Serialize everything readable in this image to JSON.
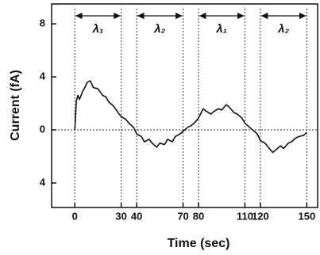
{
  "chart_data": {
    "type": "line",
    "x_label": "Time (sec)",
    "y_label": "Current (fA)",
    "x": [
      0,
      1,
      2,
      3,
      5,
      7,
      8,
      10,
      12,
      15,
      18,
      20,
      22,
      25,
      28,
      30,
      33,
      35,
      38,
      40,
      43,
      45,
      48,
      50,
      53,
      55,
      58,
      60,
      63,
      65,
      68,
      70,
      73,
      75,
      78,
      80,
      83,
      85,
      88,
      90,
      93,
      95,
      98,
      100,
      103,
      105,
      108,
      110,
      113,
      115,
      118,
      120,
      123,
      125,
      128,
      130,
      133,
      135,
      138,
      140,
      143,
      145,
      148,
      150
    ],
    "series": [
      {
        "name": "Current",
        "color": "#111111",
        "values": [
          0,
          2.2,
          2.6,
          2.3,
          2.9,
          3.3,
          3.6,
          3.7,
          3.2,
          3.1,
          2.6,
          2.5,
          2.1,
          1.8,
          1.3,
          1.0,
          0.8,
          0.5,
          0.2,
          -0.3,
          -0.5,
          -0.9,
          -0.7,
          -1.0,
          -1.3,
          -1.0,
          -1.1,
          -0.7,
          -0.9,
          -0.5,
          -0.3,
          -0.1,
          0.2,
          0.3,
          0.6,
          0.9,
          1.6,
          1.4,
          1.2,
          1.4,
          1.6,
          1.5,
          1.9,
          1.7,
          1.3,
          1.2,
          0.9,
          0.5,
          0.2,
          0.0,
          -0.3,
          -0.8,
          -1.0,
          -1.3,
          -1.7,
          -1.5,
          -1.2,
          -1.4,
          -1.0,
          -0.9,
          -0.6,
          -0.5,
          -0.4,
          -0.2
        ]
      }
    ],
    "xlim": [
      -15,
      157
    ],
    "xticks": [
      0,
      30,
      40,
      70,
      80,
      110,
      120,
      150
    ],
    "ylim": [
      -5.85,
      9.5
    ],
    "yticks": [
      8,
      4,
      0,
      {
        "value": -4,
        "label": "4"
      }
    ],
    "interval_labels": [
      "λ₁",
      "λ₂",
      "λ₁",
      "λ₂"
    ]
  }
}
